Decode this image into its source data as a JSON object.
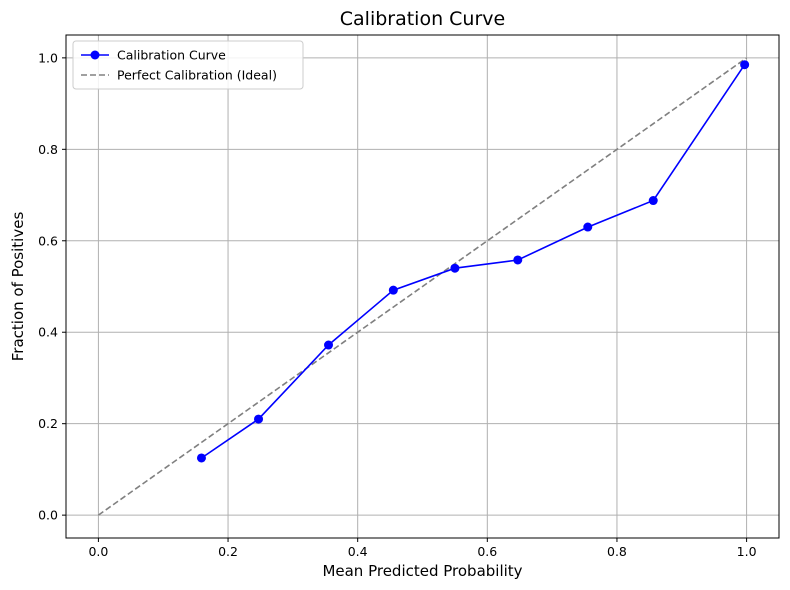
{
  "chart_data": {
    "type": "line",
    "title": "Calibration Curve",
    "xlabel": "Mean Predicted Probability",
    "ylabel": "Fraction of Positives",
    "xlim": [
      -0.05,
      1.05
    ],
    "ylim": [
      -0.05,
      1.05
    ],
    "x_ticks": [
      0.0,
      0.2,
      0.4,
      0.6,
      0.8,
      1.0
    ],
    "y_ticks": [
      0.0,
      0.2,
      0.4,
      0.6,
      0.8,
      1.0
    ],
    "x_tick_labels": [
      "0.0",
      "0.2",
      "0.4",
      "0.6",
      "0.8",
      "1.0"
    ],
    "y_tick_labels": [
      "0.0",
      "0.2",
      "0.4",
      "0.6",
      "0.8",
      "1.0"
    ],
    "grid": true,
    "legend_position": "top-left",
    "series": [
      {
        "name": "Calibration Curve",
        "color": "#0000ff",
        "style": "solid",
        "marker": "circle",
        "x": [
          0.159,
          0.247,
          0.355,
          0.455,
          0.55,
          0.647,
          0.755,
          0.856,
          0.997
        ],
        "y": [
          0.125,
          0.21,
          0.372,
          0.492,
          0.54,
          0.558,
          0.63,
          0.688,
          0.985
        ]
      },
      {
        "name": "Perfect Calibration (Ideal)",
        "color": "#808080",
        "style": "dashed",
        "marker": "none",
        "x": [
          0.0,
          1.0
        ],
        "y": [
          0.0,
          1.0
        ]
      }
    ]
  }
}
